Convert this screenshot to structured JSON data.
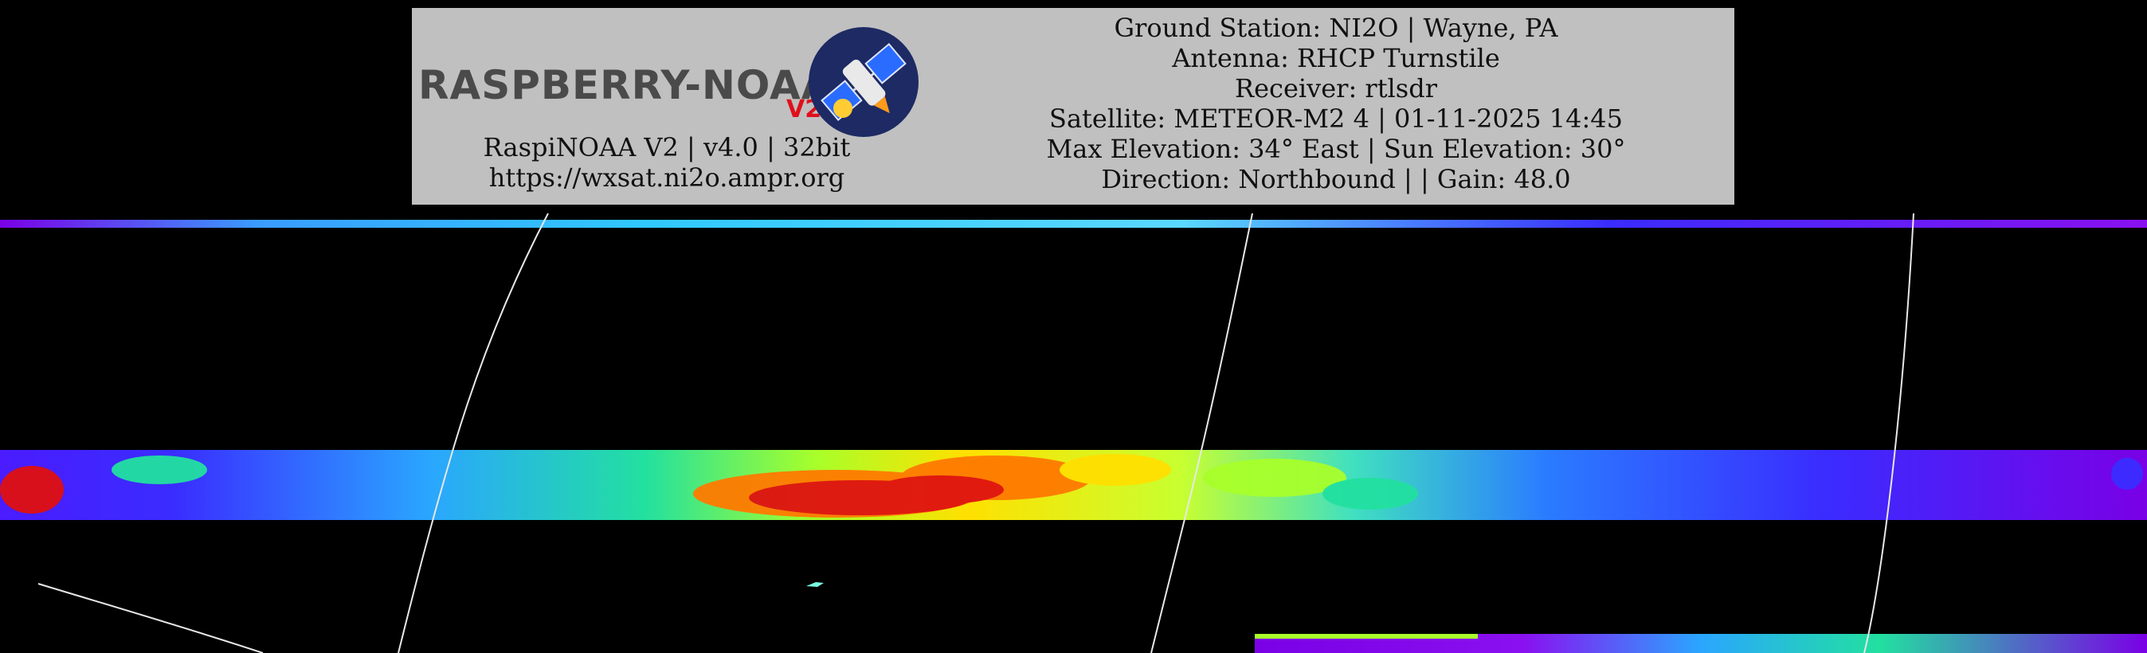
{
  "banner": {
    "logo_text": "RASPBERRY-NOAA",
    "logo_suffix": "V2",
    "left_lines": [
      "RaspiNOAA V2 | v4.0 | 32bit",
      "https://wxsat.ni2o.ampr.org"
    ],
    "right_lines": [
      "Ground Station: NI2O | Wayne, PA",
      "Antenna: RHCP Turnstile",
      "Receiver: rtlsdr",
      "Satellite: METEOR-M2 4 | 01-11-2025 14:45",
      "Max Elevation: 34° East | Sun Elevation: 30°",
      "Direction: Northbound | | Gain: 48.0"
    ],
    "colors": {
      "banner_bg": "#c0c0c0",
      "logo_text": "#4a4a4a",
      "logo_accent": "#e0101a",
      "badge_bg": "#1d2a63"
    },
    "icons": [
      "satellite-icon"
    ]
  },
  "imagery": {
    "background": "#000000",
    "palette": [
      "#7a00e6",
      "#3a2cff",
      "#2aa6ff",
      "#22e0a0",
      "#a8ff2a",
      "#ffe000",
      "#ff7a00",
      "#e01010"
    ],
    "overlay_line_color": "#e8e8e8"
  }
}
